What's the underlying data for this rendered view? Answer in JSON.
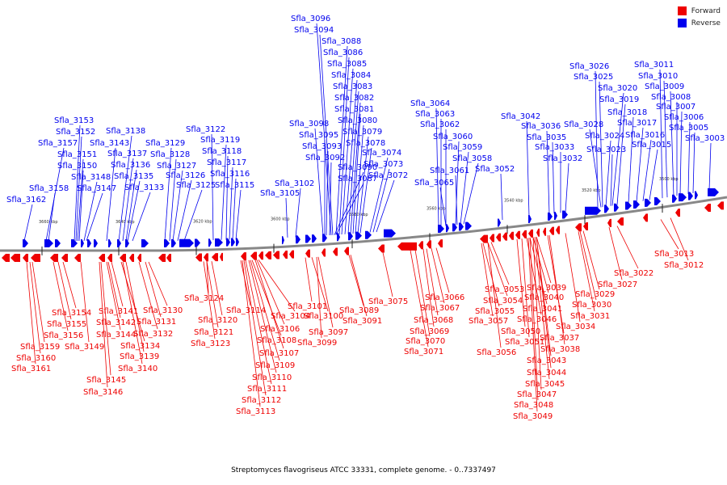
{
  "legend": [
    {
      "label": "Forward",
      "color": "#ee0000"
    },
    {
      "label": "Reverse",
      "color": "#0000ee"
    }
  ],
  "caption": "Streptomyces flavogriseus ATCC 33331, complete genome. - 0..7337497",
  "colors": {
    "forward": "#ee0000",
    "reverse": "#0000ee",
    "backbone": "#888888"
  },
  "scale_marks": [
    "3660 kbp",
    "3640 kbp",
    "3620 kbp",
    "3600 kbp",
    "3580 kbp",
    "3560 kbp",
    "3540 kbp",
    "3520 kbp",
    "3500 kbp"
  ],
  "reverse_labels": [
    "Sfla_3096",
    "Sfla_3094",
    "Sfla_3088",
    "Sfla_3086",
    "Sfla_3085",
    "Sfla_3084",
    "Sfla_3083",
    "Sfla_3082",
    "Sfla_3081",
    "Sfla_3080",
    "Sfla_3079",
    "Sfla_3078",
    "Sfla_3074",
    "Sfla_3073",
    "Sfla_3072",
    "Sfla_3098",
    "Sfla_3095",
    "Sfla_3093",
    "Sfla_3092",
    "Sfla_3090",
    "Sfla_3087",
    "Sfla_3102",
    "Sfla_3105",
    "Sfla_3153",
    "Sfla_3152",
    "Sfla_3157",
    "Sfla_3151",
    "Sfla_3150",
    "Sfla_3148",
    "Sfla_3147",
    "Sfla_3158",
    "Sfla_3162",
    "Sfla_3138",
    "Sfla_3143",
    "Sfla_3137",
    "Sfla_3136",
    "Sfla_3135",
    "Sfla_3133",
    "Sfla_3129",
    "Sfla_3128",
    "Sfla_3127",
    "Sfla_3126",
    "Sfla_3125",
    "Sfla_3122",
    "Sfla_3119",
    "Sfla_3118",
    "Sfla_3117",
    "Sfla_3116",
    "Sfla_3115",
    "Sfla_3064",
    "Sfla_3063",
    "Sfla_3062",
    "Sfla_3060",
    "Sfla_3059",
    "Sfla_3058",
    "Sfla_3061",
    "Sfla_3065",
    "Sfla_3052",
    "Sfla_3042",
    "Sfla_3036",
    "Sfla_3035",
    "Sfla_3033",
    "Sfla_3032",
    "Sfla_3028",
    "Sfla_3026",
    "Sfla_3025",
    "Sfla_3020",
    "Sfla_3019",
    "Sfla_3018",
    "Sfla_3017",
    "Sfla_3016",
    "Sfla_3015",
    "Sfla_3024",
    "Sfla_3023",
    "Sfla_3011",
    "Sfla_3010",
    "Sfla_3009",
    "Sfla_3008",
    "Sfla_3007",
    "Sfla_3006",
    "Sfla_3005",
    "Sfla_3003"
  ],
  "forward_labels": [
    "Sfla_3154",
    "Sfla_3155",
    "Sfla_3156",
    "Sfla_3159",
    "Sfla_3160",
    "Sfla_3161",
    "Sfla_3149",
    "Sfla_3141",
    "Sfla_3142",
    "Sfla_3144",
    "Sfla_3145",
    "Sfla_3146",
    "Sfla_3139",
    "Sfla_3140",
    "Sfla_3134",
    "Sfla_3130",
    "Sfla_3131",
    "Sfla_3132",
    "Sfla_3124",
    "Sfla_3120",
    "Sfla_3121",
    "Sfla_3123",
    "Sfla_3114",
    "Sfla_3104",
    "Sfla_3106",
    "Sfla_3108",
    "Sfla_3107",
    "Sfla_3109",
    "Sfla_3110",
    "Sfla_3111",
    "Sfla_3112",
    "Sfla_3113",
    "Sfla_3101",
    "Sfla_3100",
    "Sfla_3097",
    "Sfla_3099",
    "Sfla_3089",
    "Sfla_3091",
    "Sfla_3075",
    "Sfla_3066",
    "Sfla_3067",
    "Sfla_3068",
    "Sfla_3069",
    "Sfla_3070",
    "Sfla_3071",
    "Sfla_3053",
    "Sfla_3054",
    "Sfla_3055",
    "Sfla_3057",
    "Sfla_3056",
    "Sfla_3039",
    "Sfla_3040",
    "Sfla_3041",
    "Sfla_3046",
    "Sfla_3050",
    "Sfla_3051",
    "Sfla_3037",
    "Sfla_3038",
    "Sfla_3043",
    "Sfla_3044",
    "Sfla_3045",
    "Sfla_3047",
    "Sfla_3048",
    "Sfla_3049",
    "Sfla_3034",
    "Sfla_3031",
    "Sfla_3030",
    "Sfla_3029",
    "Sfla_3027",
    "Sfla_3022",
    "Sfla_3013",
    "Sfla_3012"
  ]
}
